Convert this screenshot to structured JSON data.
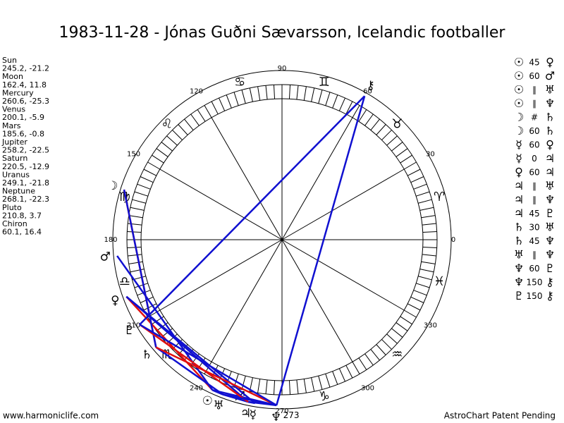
{
  "title": "1983-11-28 - Jónas Guðni Sævarsson, Icelandic footballer",
  "planets": [
    {
      "name": "Sun",
      "glyph": "☉",
      "coords": "245.2, -21.2"
    },
    {
      "name": "Moon",
      "glyph": "☽",
      "coords": "162.4, 11.8"
    },
    {
      "name": "Mercury",
      "glyph": "☿",
      "coords": "260.6, -25.3"
    },
    {
      "name": "Venus",
      "glyph": "♀",
      "coords": "200.1, -5.9"
    },
    {
      "name": "Mars",
      "glyph": "♂",
      "coords": "185.6, -0.8"
    },
    {
      "name": "Jupiter",
      "glyph": "♃",
      "coords": "258.2, -22.5"
    },
    {
      "name": "Saturn",
      "glyph": "♄",
      "coords": "220.5, -12.9"
    },
    {
      "name": "Uranus",
      "glyph": "♅",
      "coords": "249.1, -21.8"
    },
    {
      "name": "Neptune",
      "glyph": "♆",
      "coords": "268.1, -22.3"
    },
    {
      "name": "Pluto",
      "glyph": "♇",
      "coords": "210.8, 3.7"
    },
    {
      "name": "Chiron",
      "glyph": "⚷",
      "coords": "60.1, 16.4"
    }
  ],
  "aspects": [
    [
      "☉",
      "45",
      "♀"
    ],
    [
      "☉",
      "60",
      "♂"
    ],
    [
      "☉",
      "∥",
      "♅"
    ],
    [
      "☉",
      "∥",
      "♆"
    ],
    [
      "☽",
      "#",
      "♄"
    ],
    [
      "☽",
      "60",
      "♄"
    ],
    [
      "☿",
      "60",
      "♀"
    ],
    [
      "☿",
      "0",
      "♃"
    ],
    [
      "♀",
      "60",
      "♃"
    ],
    [
      "♃",
      "∥",
      "♅"
    ],
    [
      "♃",
      "∥",
      "♆"
    ],
    [
      "♃",
      "45",
      "♇"
    ],
    [
      "♄",
      "30",
      "♅"
    ],
    [
      "♄",
      "45",
      "♆"
    ],
    [
      "♅",
      "∥",
      "♆"
    ],
    [
      "♆",
      "60",
      "♇"
    ],
    [
      "♆",
      "150",
      "⚷"
    ],
    [
      "♇",
      "150",
      "⚷"
    ]
  ],
  "signs": [
    "♈",
    "♉",
    "♊",
    "♋",
    "♌",
    "♍",
    "♎",
    "♏",
    "♐",
    "♑",
    "♒",
    "♓"
  ],
  "degree_labels": [
    0,
    30,
    60,
    90,
    120,
    150,
    180,
    210,
    240,
    270,
    300,
    330
  ],
  "ascendant": 273,
  "footer_left": "www.harmoniclife.com",
  "footer_right": "AstroChart Patent Pending"
}
